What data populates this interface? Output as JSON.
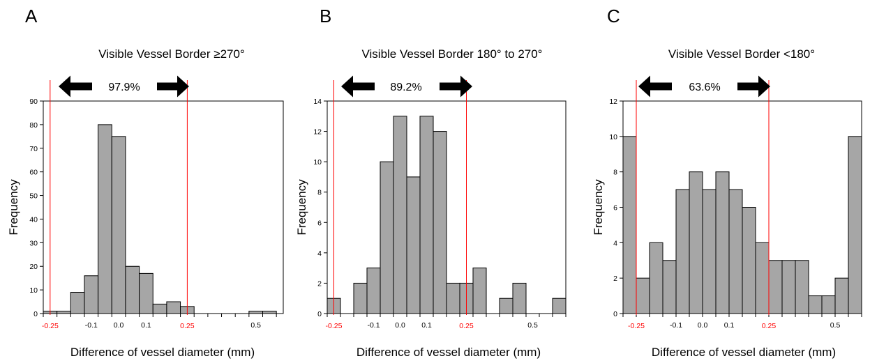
{
  "colors": {
    "bar_fill": "#a6a6a6",
    "bar_stroke": "#000000",
    "cutoff_line": "#ff0000",
    "cutoff_label": "#ff0000",
    "arrow": "#000000"
  },
  "chart_data": [
    {
      "type": "bar",
      "panel": "A",
      "title": "Visible Vessel Border ≥270°",
      "xlabel": "Difference of vessel diameter (mm)",
      "ylabel": "Frequency",
      "ylim": [
        0,
        90
      ],
      "yticks": [
        0,
        10,
        20,
        30,
        40,
        50,
        60,
        70,
        80,
        90
      ],
      "xlim": [
        -0.275,
        0.6
      ],
      "bin_width": 0.05,
      "bin_centers": [
        -0.25,
        -0.2,
        -0.15,
        -0.1,
        -0.05,
        0.0,
        0.05,
        0.1,
        0.15,
        0.2,
        0.25,
        0.3,
        0.35,
        0.4,
        0.45,
        0.5,
        0.55
      ],
      "values": [
        1,
        1,
        9,
        16,
        80,
        75,
        20,
        17,
        4,
        5,
        3,
        0,
        0,
        0,
        0,
        1,
        1
      ],
      "black_xticks": [
        {
          "value": -0.1,
          "label": "-0.1"
        },
        {
          "value": 0.0,
          "label": "0.0"
        },
        {
          "value": 0.1,
          "label": "0.1"
        },
        {
          "value": 0.5,
          "label": "0.5"
        }
      ],
      "cutoffs": [
        {
          "value": -0.25,
          "label": "-0.25"
        },
        {
          "value": 0.25,
          "label": "0.25"
        }
      ],
      "within_percent": "97.9%",
      "grid": false
    },
    {
      "type": "bar",
      "panel": "B",
      "title": "Visible Vessel Border 180° to 270°",
      "xlabel": "Difference of vessel diameter (mm)",
      "ylabel": "Frequency",
      "ylim": [
        0,
        14
      ],
      "yticks": [
        0,
        2,
        4,
        6,
        8,
        10,
        12,
        14
      ],
      "xlim": [
        -0.275,
        0.625
      ],
      "bin_width": 0.05,
      "bin_centers": [
        -0.25,
        -0.2,
        -0.15,
        -0.1,
        -0.05,
        0.0,
        0.05,
        0.1,
        0.15,
        0.2,
        0.25,
        0.3,
        0.35,
        0.4,
        0.45,
        0.5,
        0.55,
        0.6
      ],
      "values": [
        1,
        0,
        2,
        3,
        10,
        13,
        9,
        13,
        12,
        2,
        2,
        3,
        0,
        1,
        2,
        0,
        0,
        1
      ],
      "black_xticks": [
        {
          "value": -0.1,
          "label": "-0.1"
        },
        {
          "value": 0.0,
          "label": "0.0"
        },
        {
          "value": 0.1,
          "label": "0.1"
        },
        {
          "value": 0.5,
          "label": "0.5"
        }
      ],
      "cutoffs": [
        {
          "value": -0.25,
          "label": "-0.25"
        },
        {
          "value": 0.25,
          "label": "0.25"
        }
      ],
      "within_percent": "89.2%",
      "grid": false
    },
    {
      "type": "bar",
      "panel": "C",
      "title": "Visible Vessel Border <180°",
      "xlabel": "Difference of vessel diameter (mm)",
      "ylabel": "Frequency",
      "ylim": [
        0,
        12
      ],
      "yticks": [
        0,
        2,
        4,
        6,
        8,
        10,
        12
      ],
      "xlim": [
        -0.3,
        0.6
      ],
      "bin_width": 0.05,
      "bin_centers": [
        -0.275,
        -0.225,
        -0.175,
        -0.125,
        -0.075,
        -0.025,
        0.025,
        0.075,
        0.125,
        0.175,
        0.225,
        0.275,
        0.325,
        0.375,
        0.425,
        0.475,
        0.525,
        0.575
      ],
      "values": [
        10,
        2,
        4,
        3,
        7,
        8,
        7,
        8,
        7,
        6,
        4,
        3,
        3,
        3,
        1,
        1,
        2,
        10
      ],
      "black_xticks": [
        {
          "value": -0.1,
          "label": "-0.1"
        },
        {
          "value": 0.0,
          "label": "0.0"
        },
        {
          "value": 0.1,
          "label": "0.1"
        },
        {
          "value": 0.5,
          "label": "0.5"
        }
      ],
      "cutoffs": [
        {
          "value": -0.25,
          "label": "-0.25"
        },
        {
          "value": 0.25,
          "label": "0.25"
        }
      ],
      "within_percent": "63.6%",
      "grid": false
    }
  ]
}
